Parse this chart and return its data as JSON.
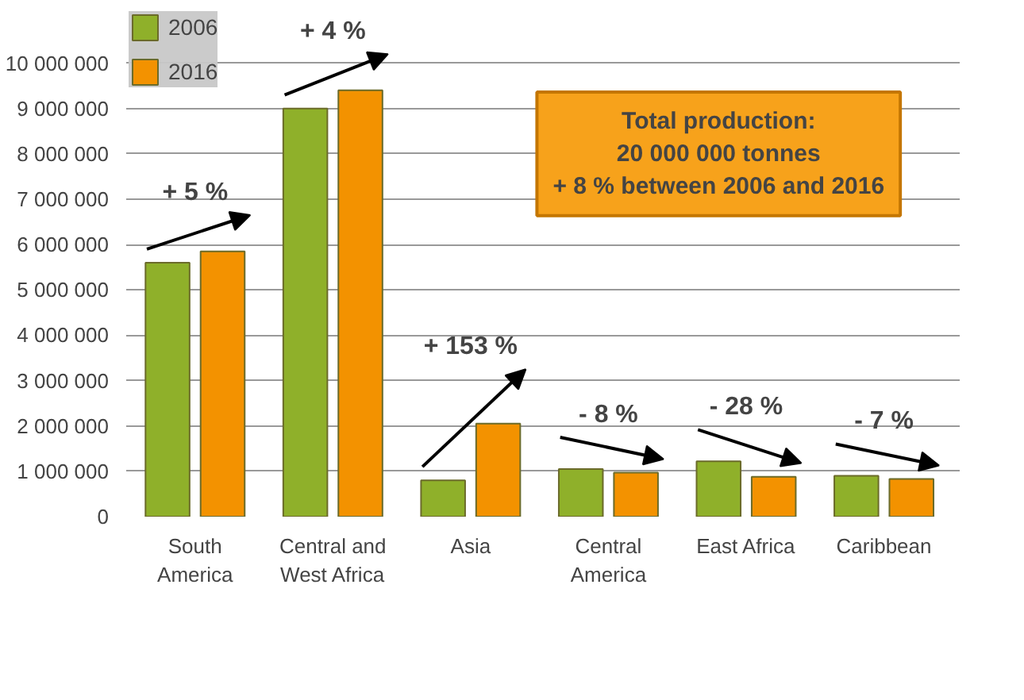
{
  "chart_data": {
    "type": "bar",
    "categories": [
      "South\nAmerica",
      "Central and\nWest Africa",
      "Asia",
      "Central\nAmerica",
      "East Africa",
      "Caribbean"
    ],
    "series": [
      {
        "name": "2006",
        "color": "#8fb02a",
        "values": [
          5600000,
          9000000,
          800000,
          1050000,
          1220000,
          900000
        ]
      },
      {
        "name": "2016",
        "color": "#f39200",
        "values": [
          5850000,
          9400000,
          2050000,
          970000,
          880000,
          830000
        ]
      }
    ],
    "ylim": [
      0,
      10000000
    ],
    "yticks": [
      {
        "value": 0,
        "label": "0"
      },
      {
        "value": 1000000,
        "label": "1 000 000"
      },
      {
        "value": 2000000,
        "label": "2 000 000"
      },
      {
        "value": 3000000,
        "label": "3 000 000"
      },
      {
        "value": 4000000,
        "label": "4 000 000"
      },
      {
        "value": 5000000,
        "label": "5 000 000"
      },
      {
        "value": 6000000,
        "label": "6 000 000"
      },
      {
        "value": 7000000,
        "label": "7 000 000"
      },
      {
        "value": 8000000,
        "label": "8 000 000"
      },
      {
        "value": 9000000,
        "label": "9 000 000"
      },
      {
        "value": 10000000,
        "label": "10 000 000"
      }
    ],
    "grid": "y",
    "legend": "top left",
    "annotations": [
      "+ 5 %",
      "+ 4 %",
      "+ 153 %",
      "- 8 %",
      "- 28 %",
      "- 7 %",
      "Total production:\n20 000 000 tonnes\n+ 8 % between 2006 and 2016"
    ]
  }
}
